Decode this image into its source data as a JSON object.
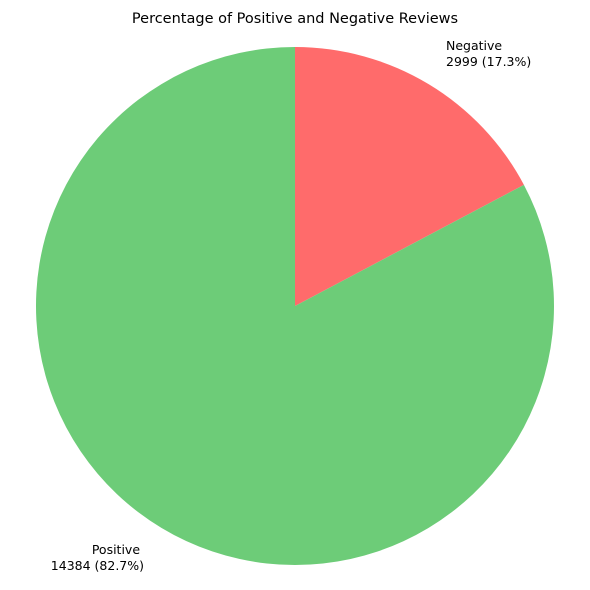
{
  "chart_data": {
    "type": "pie",
    "title": "Percentage of Positive and Negative Reviews",
    "slices": [
      {
        "name": "Negative",
        "value": 2999,
        "percent": 17.3,
        "label_value": "2999 (17.3%)",
        "color": "#ff6b6b"
      },
      {
        "name": "Positive",
        "value": 14384,
        "percent": 82.7,
        "label_value": "14384 (82.7%)",
        "color": "#6dcc78"
      }
    ],
    "start_angle": "top",
    "direction": "clockwise"
  }
}
